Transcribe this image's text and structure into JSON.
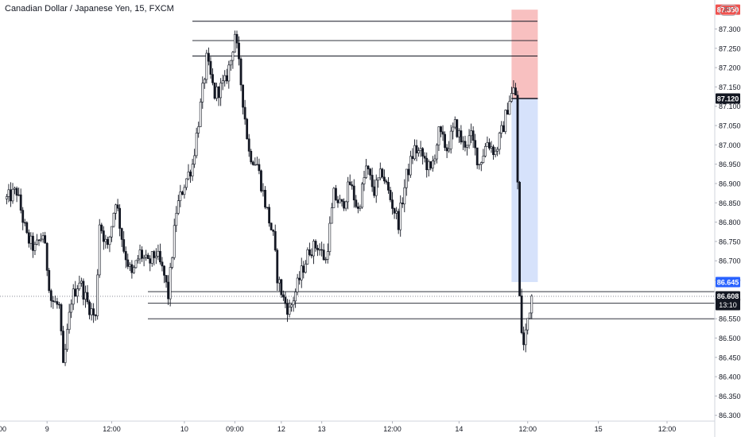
{
  "header": {
    "title": "Canadian Dollar / Japanese Yen, 15, FXCM",
    "currency": "JPY"
  },
  "colors": {
    "candle": "#131722",
    "axis_text": "#131722",
    "grid_line": "#e0e3eb",
    "level_line": "#131722",
    "stop_zone": "#f8c0c0",
    "target_zone": "#d6e2fb",
    "stop_label": "#ef5350",
    "target_label": "#2962ff",
    "current_label": "#131722"
  },
  "chart_data": {
    "type": "candlestick",
    "title": "Canadian Dollar / Japanese Yen, 15, FXCM",
    "ylim": [
      86.285,
      87.375
    ],
    "y_ticks": [
      "87.300",
      "87.250",
      "87.200",
      "87.150",
      "87.100",
      "87.050",
      "87.000",
      "86.950",
      "86.900",
      "86.850",
      "86.800",
      "86.750",
      "86.700",
      "86.650",
      "86.600",
      "86.550",
      "86.500",
      "86.450",
      "86.400",
      "86.350",
      "86.300"
    ],
    "x_ticks": [
      {
        "label": "9",
        "index": 20
      },
      {
        "label": "12:00",
        "index": 52
      },
      {
        "label": "10",
        "index": 88
      },
      {
        "label": "09:00",
        "index": 113
      },
      {
        "label": "12",
        "index": 136
      },
      {
        "label": "13",
        "index": 156
      },
      {
        "label": "12:00",
        "index": 191
      },
      {
        "label": "14",
        "index": 224
      },
      {
        "label": "12:00",
        "index": 258
      },
      {
        "label": "15",
        "index": 293
      },
      {
        "label": "12:00",
        "index": 327
      }
    ],
    "x_partial_label": "00",
    "bar_count": 370,
    "waypoints": [
      [
        0,
        86.86
      ],
      [
        5,
        86.88
      ],
      [
        10,
        86.76
      ],
      [
        14,
        86.73
      ],
      [
        18,
        86.77
      ],
      [
        22,
        86.6
      ],
      [
        26,
        86.58
      ],
      [
        28,
        86.42
      ],
      [
        32,
        86.6
      ],
      [
        36,
        86.65
      ],
      [
        40,
        86.59
      ],
      [
        44,
        86.55
      ],
      [
        46,
        86.8
      ],
      [
        50,
        86.73
      ],
      [
        54,
        86.86
      ],
      [
        58,
        86.73
      ],
      [
        62,
        86.66
      ],
      [
        66,
        86.72
      ],
      [
        70,
        86.69
      ],
      [
        74,
        86.72
      ],
      [
        78,
        86.66
      ],
      [
        80,
        86.61
      ],
      [
        84,
        86.83
      ],
      [
        88,
        86.9
      ],
      [
        92,
        86.95
      ],
      [
        96,
        87.1
      ],
      [
        99,
        87.22
      ],
      [
        103,
        87.13
      ],
      [
        108,
        87.16
      ],
      [
        111,
        87.22
      ],
      [
        113,
        87.29
      ],
      [
        116,
        87.16
      ],
      [
        120,
        86.98
      ],
      [
        124,
        86.95
      ],
      [
        128,
        86.85
      ],
      [
        132,
        86.76
      ],
      [
        134,
        86.66
      ],
      [
        137,
        86.6
      ],
      [
        140,
        86.57
      ],
      [
        143,
        86.62
      ],
      [
        146,
        86.67
      ],
      [
        150,
        86.73
      ],
      [
        154,
        86.74
      ],
      [
        158,
        86.7
      ],
      [
        162,
        86.87
      ],
      [
        166,
        86.84
      ],
      [
        170,
        86.9
      ],
      [
        174,
        86.83
      ],
      [
        178,
        86.94
      ],
      [
        182,
        86.88
      ],
      [
        186,
        86.93
      ],
      [
        190,
        86.86
      ],
      [
        194,
        86.8
      ],
      [
        198,
        86.92
      ],
      [
        202,
        86.99
      ],
      [
        206,
        86.97
      ],
      [
        210,
        86.93
      ],
      [
        214,
        87.03
      ],
      [
        218,
        86.99
      ],
      [
        222,
        87.05
      ],
      [
        226,
        87.0
      ],
      [
        230,
        87.02
      ],
      [
        234,
        86.95
      ],
      [
        238,
        87.01
      ],
      [
        242,
        86.98
      ],
      [
        246,
        87.05
      ],
      [
        249,
        87.12
      ],
      [
        251,
        87.14
      ],
      [
        252,
        87.13
      ],
      [
        253,
        86.9
      ],
      [
        254,
        86.6
      ],
      [
        255,
        86.52
      ],
      [
        256,
        86.48
      ],
      [
        258,
        86.55
      ],
      [
        260,
        86.61
      ]
    ],
    "levels": [
      87.32,
      87.27,
      87.23,
      86.62,
      86.59,
      86.55
    ],
    "position": {
      "stop": 87.35,
      "entry": 87.12,
      "target": 86.645,
      "start_index": 250,
      "end_index": 263
    },
    "price_labels": {
      "stop": "87.350",
      "entry": "87.120",
      "target": "86.645",
      "current": "86.608",
      "countdown": "13:10"
    },
    "current_price": 86.608
  }
}
